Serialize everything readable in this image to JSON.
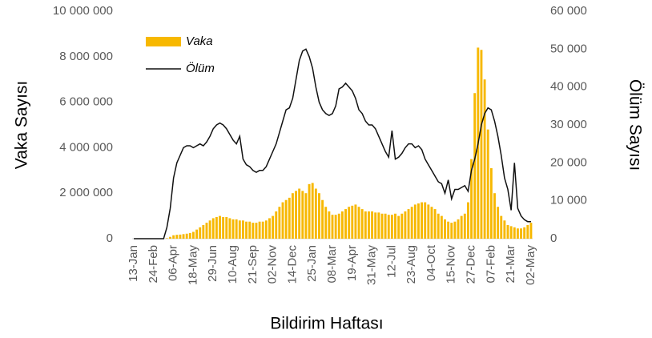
{
  "chart_data": {
    "type": "bar-line",
    "x_label": "Bildirim Haftası",
    "y_label": "Vaka Sayısı",
    "y2_label": "Ölüm Sayısı",
    "categories": [
      "13-Jan",
      null,
      null,
      null,
      null,
      null,
      "24-Feb",
      null,
      null,
      null,
      null,
      null,
      "06-Apr",
      null,
      null,
      null,
      null,
      null,
      "18-May",
      null,
      null,
      null,
      null,
      null,
      "29-Jun",
      null,
      null,
      null,
      null,
      null,
      "10-Aug",
      null,
      null,
      null,
      null,
      null,
      "21-Sep",
      null,
      null,
      null,
      null,
      null,
      "02-Nov",
      null,
      null,
      null,
      null,
      null,
      "14-Dec",
      null,
      null,
      null,
      null,
      null,
      "25-Jan",
      null,
      null,
      null,
      null,
      null,
      "08-Mar",
      null,
      null,
      null,
      null,
      null,
      "19-Apr",
      null,
      null,
      null,
      null,
      null,
      "31-May",
      null,
      null,
      null,
      null,
      null,
      "12-Jul",
      null,
      null,
      null,
      null,
      null,
      "23-Aug",
      null,
      null,
      null,
      null,
      null,
      "04-Oct",
      null,
      null,
      null,
      null,
      null,
      "15-Nov",
      null,
      null,
      null,
      null,
      null,
      "27-Dec",
      null,
      null,
      null,
      null,
      null,
      "07-Feb",
      null,
      null,
      null,
      null,
      null,
      "21-Mar",
      null,
      null,
      null,
      null,
      null,
      "02-May"
    ],
    "series": [
      {
        "name": "Vaka",
        "kind": "bar",
        "color": "#f7b800",
        "values": [
          0,
          0,
          0,
          0,
          0,
          0,
          0,
          0,
          0,
          0,
          20000,
          80000,
          150000,
          170000,
          180000,
          200000,
          220000,
          250000,
          300000,
          400000,
          500000,
          600000,
          700000,
          800000,
          900000,
          950000,
          1000000,
          950000,
          950000,
          900000,
          850000,
          850000,
          800000,
          800000,
          750000,
          750000,
          700000,
          700000,
          750000,
          750000,
          800000,
          900000,
          1000000,
          1200000,
          1400000,
          1600000,
          1700000,
          1800000,
          2000000,
          2100000,
          2200000,
          2100000,
          2000000,
          2400000,
          2450000,
          2200000,
          2000000,
          1700000,
          1400000,
          1200000,
          1050000,
          1050000,
          1100000,
          1200000,
          1300000,
          1400000,
          1450000,
          1500000,
          1400000,
          1300000,
          1200000,
          1200000,
          1200000,
          1150000,
          1150000,
          1100000,
          1100000,
          1050000,
          1050000,
          1100000,
          1000000,
          1100000,
          1200000,
          1300000,
          1400000,
          1500000,
          1550000,
          1600000,
          1600000,
          1500000,
          1400000,
          1300000,
          1100000,
          1000000,
          850000,
          750000,
          700000,
          750000,
          850000,
          1000000,
          1100000,
          1600000,
          3500000,
          6400000,
          8400000,
          8300000,
          7000000,
          4800000,
          3100000,
          2000000,
          1400000,
          1000000,
          800000,
          600000,
          550000,
          500000,
          450000,
          450000,
          500000,
          600000,
          700000
        ]
      },
      {
        "name": "Ölüm",
        "kind": "line",
        "axis": "y2",
        "color": "#111111",
        "values": [
          0,
          0,
          0,
          0,
          0,
          0,
          0,
          0,
          0,
          0,
          3000,
          8000,
          16000,
          20000,
          22000,
          24000,
          24500,
          24500,
          24000,
          24500,
          25000,
          24500,
          25500,
          27000,
          29000,
          30000,
          30500,
          30000,
          29000,
          27500,
          26000,
          25000,
          27000,
          21000,
          19500,
          19000,
          18000,
          17500,
          18000,
          18000,
          19000,
          21000,
          23000,
          25000,
          28000,
          31000,
          34000,
          34500,
          37000,
          42000,
          47000,
          49500,
          50000,
          48000,
          45000,
          40000,
          36000,
          34000,
          33000,
          32500,
          33000,
          35000,
          39500,
          40000,
          41000,
          40000,
          39000,
          37000,
          34000,
          33000,
          31000,
          30000,
          30000,
          29000,
          27000,
          25000,
          23000,
          21500,
          28500,
          21000,
          21500,
          22500,
          24000,
          25000,
          25000,
          24000,
          24500,
          23500,
          21000,
          19500,
          18000,
          16500,
          15000,
          14500,
          12000,
          15500,
          10500,
          13000,
          13000,
          13500,
          14000,
          12500,
          18000,
          21000,
          25000,
          30000,
          33000,
          34500,
          34000,
          31000,
          27000,
          22000,
          16000,
          13000,
          7500,
          20000,
          8000,
          6000,
          5000,
          4500,
          4500
        ]
      }
    ],
    "ylim": [
      0,
      10000000
    ],
    "yticks": [
      0,
      {
        "value": 2000000,
        "label": "2 000 000"
      },
      {
        "value": 4000000,
        "label": "4 000 000"
      },
      {
        "value": 6000000,
        "label": "6 000 000"
      },
      {
        "value": 8000000,
        "label": "8 000 000"
      },
      {
        "value": 10000000,
        "label": "10 000 000"
      }
    ],
    "y2lim": [
      0,
      60000
    ],
    "y2ticks": [
      0,
      {
        "value": 10000,
        "label": "10 000"
      },
      {
        "value": 20000,
        "label": "20 000"
      },
      {
        "value": 30000,
        "label": "30 000"
      },
      {
        "value": 40000,
        "label": "40 000"
      },
      {
        "value": 50000,
        "label": "50 000"
      },
      {
        "value": 60000,
        "label": "60 000"
      }
    ],
    "grid": false,
    "legend": "top-left"
  }
}
